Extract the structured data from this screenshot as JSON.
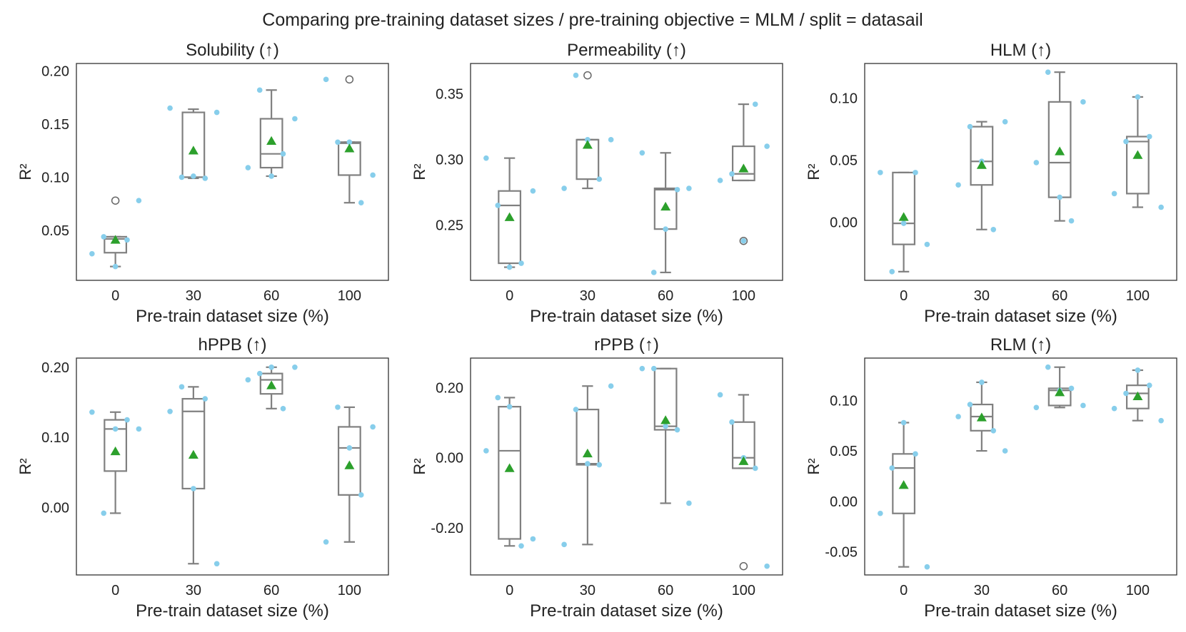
{
  "figure": {
    "suptitle": "Comparing pre-training dataset sizes / pre-training objective =  MLM / split = datasail"
  },
  "colors": {
    "points": "#87ceeb",
    "mean": "#2ca02c",
    "box": "#808080",
    "flier": "#666666"
  },
  "chart_data": [
    {
      "type": "box",
      "title": "Solubility (↑)",
      "xlabel": "Pre-train dataset size (%)",
      "ylabel": "R²",
      "categories": [
        "0",
        "30",
        "60",
        "100"
      ],
      "ylim": [
        0.003,
        0.207
      ],
      "yticks": [
        0.05,
        0.1,
        0.15,
        0.2
      ],
      "ytick_labels": [
        "0.05",
        "0.10",
        "0.15",
        "0.20"
      ],
      "boxes": [
        {
          "whislo": 0.016,
          "q1": 0.029,
          "med": 0.042,
          "q3": 0.044,
          "whishi": 0.044,
          "mean": 0.041,
          "fliers": [
            0.078
          ]
        },
        {
          "whislo": 0.099,
          "q1": 0.1,
          "med": 0.1,
          "q3": 0.161,
          "whishi": 0.164,
          "mean": 0.125,
          "fliers": []
        },
        {
          "whislo": 0.101,
          "q1": 0.109,
          "med": 0.122,
          "q3": 0.155,
          "whishi": 0.182,
          "mean": 0.134,
          "fliers": []
        },
        {
          "whislo": 0.076,
          "q1": 0.102,
          "med": 0.132,
          "q3": 0.133,
          "whishi": 0.133,
          "mean": 0.127,
          "fliers": [
            0.192
          ]
        }
      ],
      "points": [
        [
          0.028,
          0.044,
          0.016,
          0.041,
          0.078
        ],
        [
          0.165,
          0.1,
          0.101,
          0.099,
          0.161
        ],
        [
          0.109,
          0.182,
          0.101,
          0.122,
          0.155
        ],
        [
          0.192,
          0.133,
          0.133,
          0.076,
          0.102
        ]
      ]
    },
    {
      "type": "box",
      "title": "Permeability (↑)",
      "xlabel": "Pre-train dataset size (%)",
      "ylabel": "R²",
      "categories": [
        "0",
        "30",
        "60",
        "100"
      ],
      "ylim": [
        0.208,
        0.373
      ],
      "yticks": [
        0.25,
        0.3,
        0.35
      ],
      "ytick_labels": [
        "0.25",
        "0.30",
        "0.35"
      ],
      "boxes": [
        {
          "whislo": 0.218,
          "q1": 0.221,
          "med": 0.265,
          "q3": 0.276,
          "whishi": 0.301,
          "mean": 0.256,
          "fliers": []
        },
        {
          "whislo": 0.278,
          "q1": 0.285,
          "med": 0.315,
          "q3": 0.315,
          "whishi": 0.315,
          "mean": 0.311,
          "fliers": [
            0.364
          ]
        },
        {
          "whislo": 0.214,
          "q1": 0.247,
          "med": 0.277,
          "q3": 0.278,
          "whishi": 0.305,
          "mean": 0.264,
          "fliers": []
        },
        {
          "whislo": 0.284,
          "q1": 0.284,
          "med": 0.289,
          "q3": 0.31,
          "whishi": 0.342,
          "mean": 0.293,
          "fliers": [
            0.238
          ]
        }
      ],
      "points": [
        [
          0.301,
          0.265,
          0.218,
          0.221,
          0.276
        ],
        [
          0.278,
          0.364,
          0.315,
          0.285,
          0.315
        ],
        [
          0.305,
          0.214,
          0.247,
          0.277,
          0.278
        ],
        [
          0.284,
          0.289,
          0.238,
          0.342,
          0.31
        ]
      ]
    },
    {
      "type": "box",
      "title": "HLM (↑)",
      "xlabel": "Pre-train dataset size (%)",
      "ylabel": "R²",
      "categories": [
        "0",
        "30",
        "60",
        "100"
      ],
      "ylim": [
        -0.047,
        0.128
      ],
      "yticks": [
        0.0,
        0.05,
        0.1
      ],
      "ytick_labels": [
        "0.00",
        "0.05",
        "0.10"
      ],
      "boxes": [
        {
          "whislo": -0.04,
          "q1": -0.018,
          "med": -0.001,
          "q3": 0.04,
          "whishi": 0.04,
          "mean": 0.004,
          "fliers": []
        },
        {
          "whislo": -0.006,
          "q1": 0.03,
          "med": 0.049,
          "q3": 0.077,
          "whishi": 0.081,
          "mean": 0.046,
          "fliers": []
        },
        {
          "whislo": 0.001,
          "q1": 0.02,
          "med": 0.048,
          "q3": 0.097,
          "whishi": 0.121,
          "mean": 0.057,
          "fliers": []
        },
        {
          "whislo": 0.012,
          "q1": 0.023,
          "med": 0.065,
          "q3": 0.069,
          "whishi": 0.101,
          "mean": 0.054,
          "fliers": []
        }
      ],
      "points": [
        [
          0.04,
          -0.04,
          -0.001,
          0.04,
          -0.018
        ],
        [
          0.03,
          0.077,
          0.049,
          -0.006,
          0.081
        ],
        [
          0.048,
          0.121,
          0.02,
          0.001,
          0.097
        ],
        [
          0.023,
          0.065,
          0.101,
          0.069,
          0.012
        ]
      ]
    },
    {
      "type": "box",
      "title": "hPPB (↑)",
      "xlabel": "Pre-train dataset size (%)",
      "ylabel": "R²",
      "categories": [
        "0",
        "30",
        "60",
        "100"
      ],
      "ylim": [
        -0.096,
        0.213
      ],
      "yticks": [
        0.0,
        0.1,
        0.2
      ],
      "ytick_labels": [
        "0.00",
        "0.10",
        "0.20"
      ],
      "boxes": [
        {
          "whislo": -0.008,
          "q1": 0.052,
          "med": 0.112,
          "q3": 0.125,
          "whishi": 0.136,
          "mean": 0.08,
          "fliers": []
        },
        {
          "whislo": -0.08,
          "q1": 0.027,
          "med": 0.137,
          "q3": 0.155,
          "whishi": 0.172,
          "mean": 0.075,
          "fliers": []
        },
        {
          "whislo": 0.141,
          "q1": 0.162,
          "med": 0.182,
          "q3": 0.191,
          "whishi": 0.2,
          "mean": 0.174,
          "fliers": []
        },
        {
          "whislo": -0.049,
          "q1": 0.018,
          "med": 0.085,
          "q3": 0.115,
          "whishi": 0.143,
          "mean": 0.06,
          "fliers": []
        }
      ],
      "points": [
        [
          0.136,
          -0.008,
          0.112,
          0.125,
          0.112
        ],
        [
          0.137,
          0.172,
          0.027,
          0.155,
          -0.08
        ],
        [
          0.182,
          0.191,
          0.2,
          0.141,
          0.2
        ],
        [
          -0.049,
          0.143,
          0.085,
          0.018,
          0.115
        ]
      ]
    },
    {
      "type": "box",
      "title": "rPPB (↑)",
      "xlabel": "Pre-train dataset size (%)",
      "ylabel": "R²",
      "categories": [
        "0",
        "30",
        "60",
        "100"
      ],
      "ylim": [
        -0.335,
        0.285
      ],
      "yticks": [
        -0.2,
        0.0,
        0.2
      ],
      "ytick_labels": [
        "-0.20",
        "0.00",
        "0.20"
      ],
      "boxes": [
        {
          "whislo": -0.252,
          "q1": -0.232,
          "med": 0.02,
          "q3": 0.146,
          "whishi": 0.172,
          "mean": -0.03,
          "fliers": []
        },
        {
          "whislo": -0.248,
          "q1": -0.02,
          "med": -0.017,
          "q3": 0.138,
          "whishi": 0.205,
          "mean": 0.012,
          "fliers": []
        },
        {
          "whislo": -0.13,
          "q1": 0.08,
          "med": 0.09,
          "q3": 0.255,
          "whishi": 0.255,
          "mean": 0.107,
          "fliers": []
        },
        {
          "whislo": -0.03,
          "q1": -0.03,
          "med": 0.0,
          "q3": 0.102,
          "whishi": 0.18,
          "mean": -0.01,
          "fliers": [
            -0.31
          ]
        }
      ],
      "points": [
        [
          0.02,
          0.172,
          0.146,
          -0.252,
          -0.232
        ],
        [
          -0.248,
          0.138,
          -0.017,
          -0.02,
          0.205
        ],
        [
          0.255,
          0.255,
          0.09,
          0.08,
          -0.13
        ],
        [
          0.18,
          0.102,
          0.0,
          -0.03,
          -0.31
        ]
      ]
    },
    {
      "type": "box",
      "title": "RLM (↑)",
      "xlabel": "Pre-train dataset size (%)",
      "ylabel": "R²",
      "categories": [
        "0",
        "30",
        "60",
        "100"
      ],
      "ylim": [
        -0.073,
        0.142
      ],
      "yticks": [
        -0.05,
        0.0,
        0.05,
        0.1
      ],
      "ytick_labels": [
        "-0.05",
        "0.00",
        "0.05",
        "0.10"
      ],
      "boxes": [
        {
          "whislo": -0.065,
          "q1": -0.012,
          "med": 0.033,
          "q3": 0.047,
          "whishi": 0.078,
          "mean": 0.016,
          "fliers": []
        },
        {
          "whislo": 0.05,
          "q1": 0.07,
          "med": 0.084,
          "q3": 0.096,
          "whishi": 0.118,
          "mean": 0.083,
          "fliers": []
        },
        {
          "whislo": 0.093,
          "q1": 0.095,
          "med": 0.11,
          "q3": 0.112,
          "whishi": 0.133,
          "mean": 0.108,
          "fliers": []
        },
        {
          "whislo": 0.08,
          "q1": 0.092,
          "med": 0.107,
          "q3": 0.115,
          "whishi": 0.13,
          "mean": 0.104,
          "fliers": []
        }
      ],
      "points": [
        [
          -0.012,
          0.033,
          0.078,
          0.047,
          -0.065
        ],
        [
          0.084,
          0.096,
          0.118,
          0.07,
          0.05
        ],
        [
          0.093,
          0.133,
          0.11,
          0.112,
          0.095
        ],
        [
          0.092,
          0.107,
          0.13,
          0.115,
          0.08
        ]
      ]
    }
  ]
}
